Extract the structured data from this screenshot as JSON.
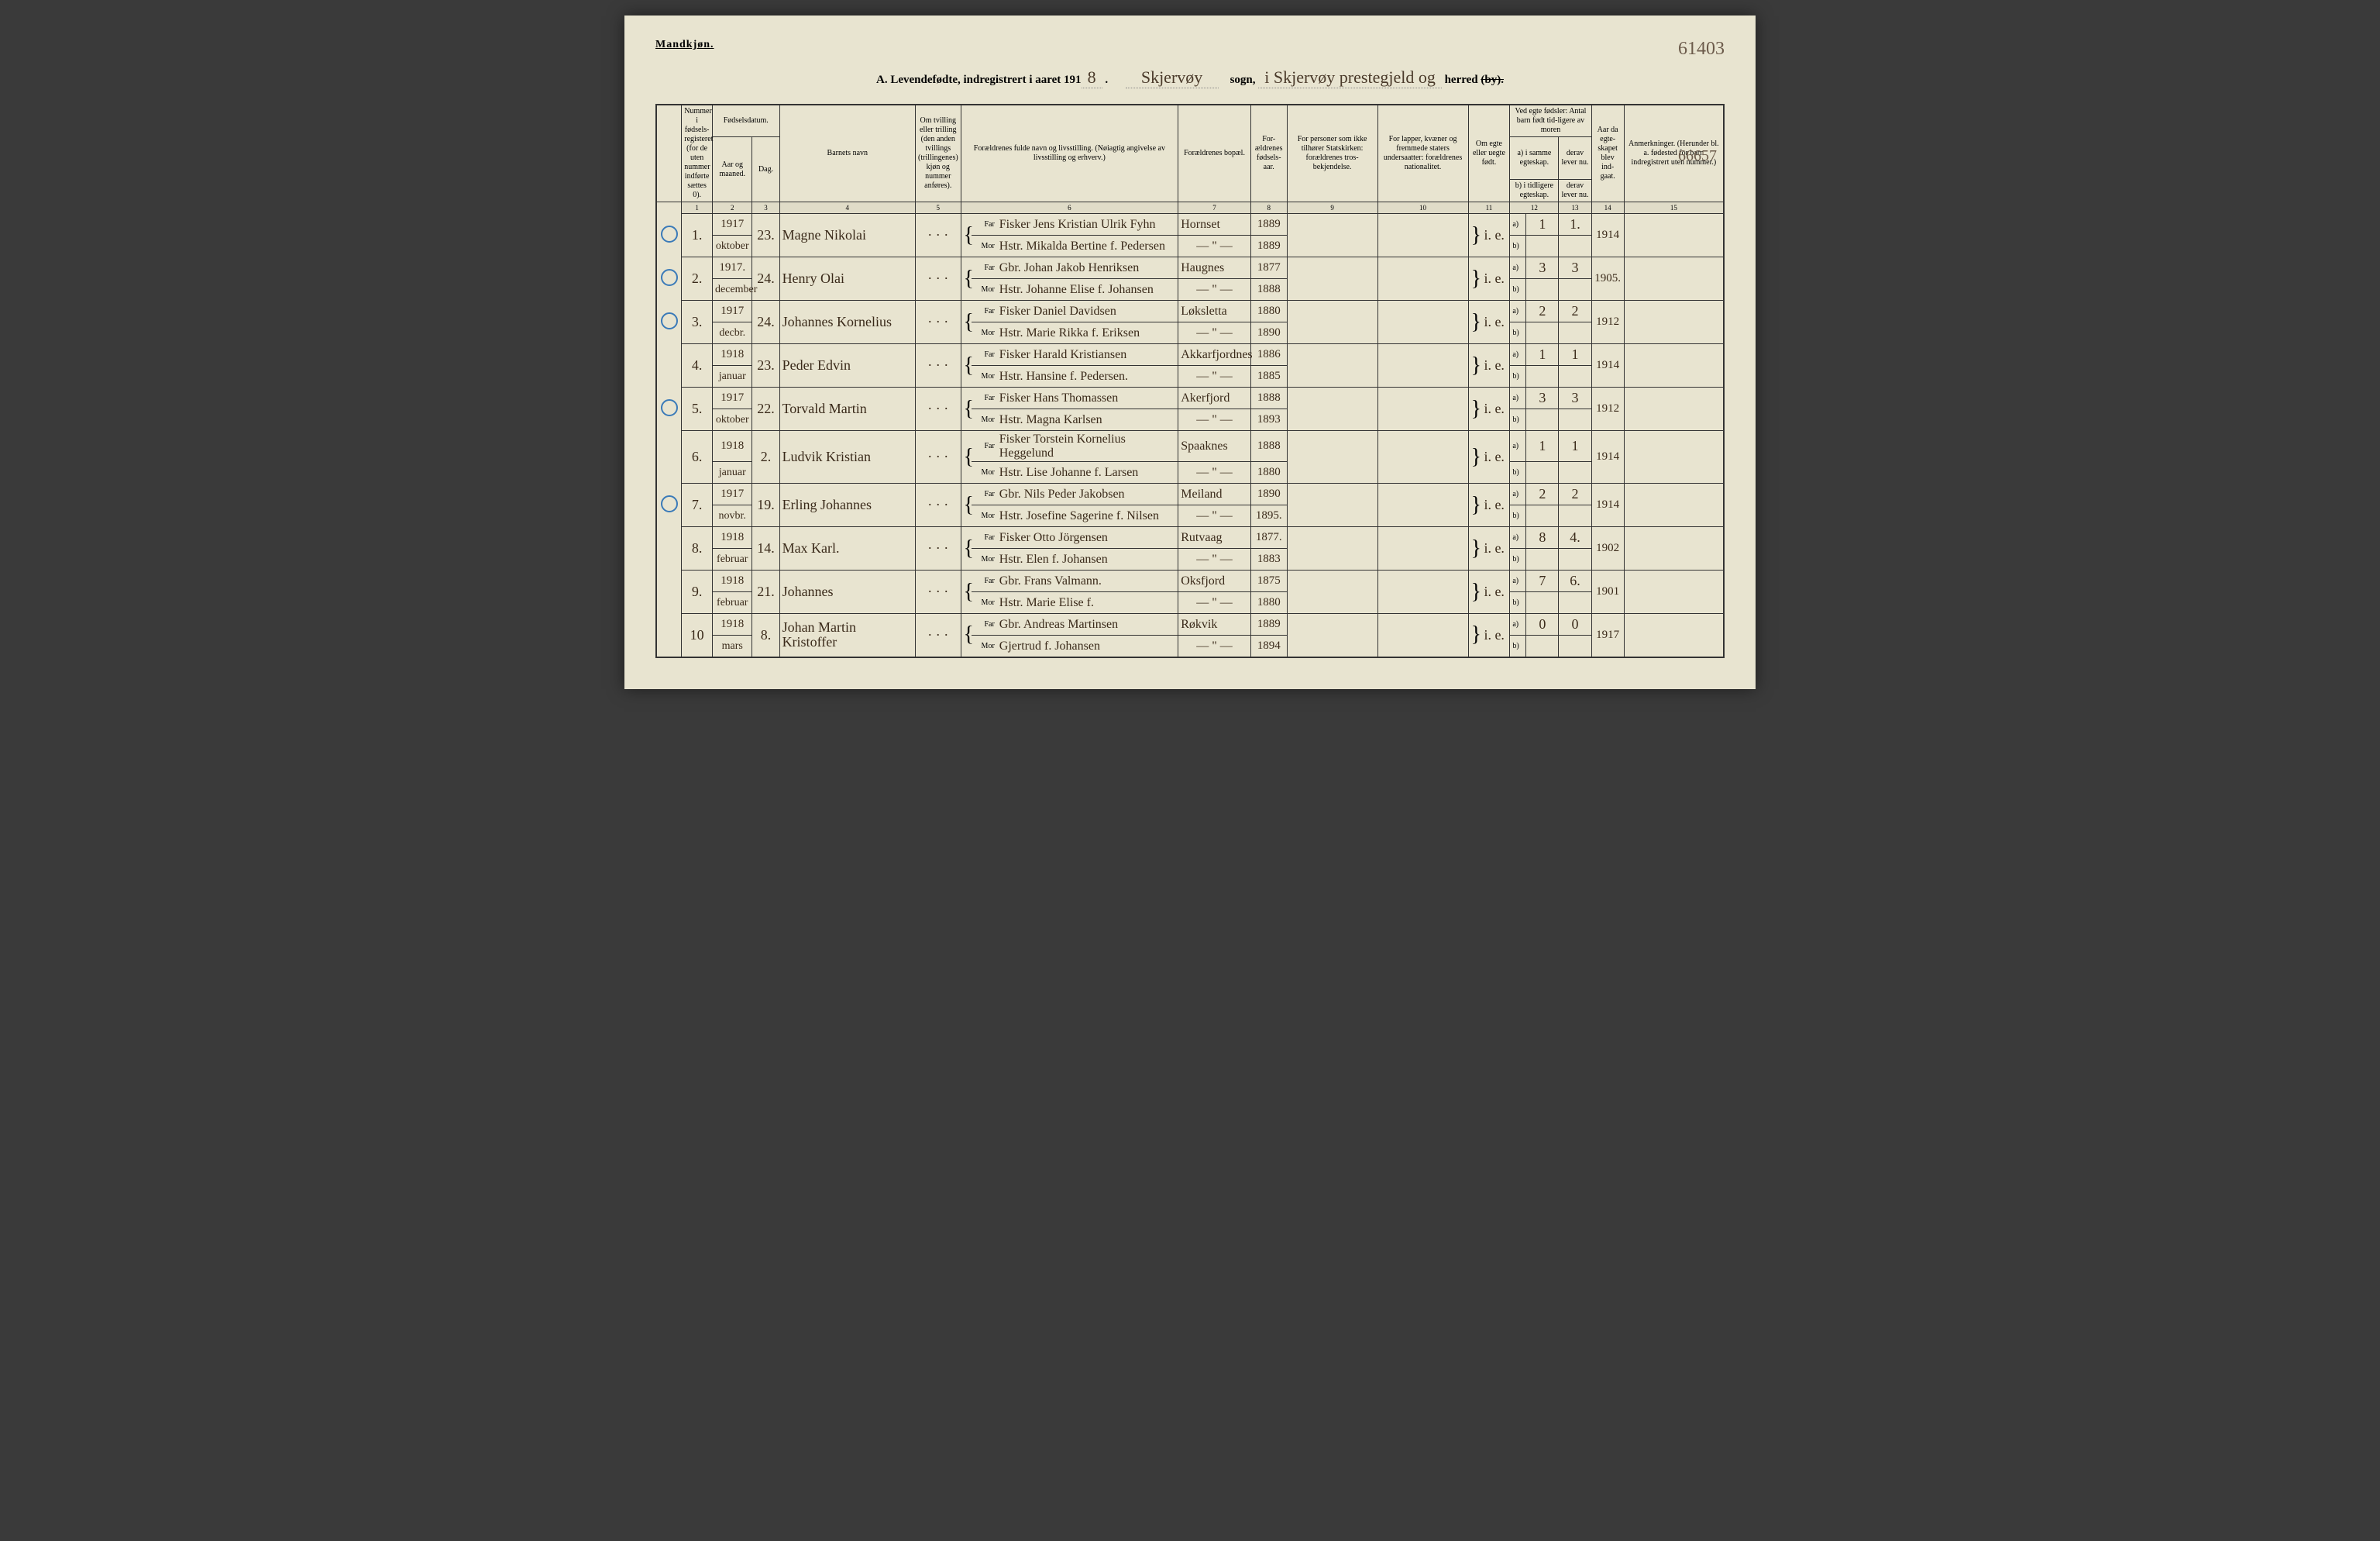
{
  "page": {
    "gender_label": "Mandkjøn.",
    "page_number_top": "61403",
    "margin_note_1": "66657",
    "title_printed_1": "A. Levendefødte, indregistrert i aaret 191",
    "title_year_suffix": "8",
    "title_sogn_script": "Skjervøy",
    "title_sogn_label": "sogn,",
    "title_prestegjeld_script": "i Skjervøy prestegjeld og",
    "title_herred_label": "herred",
    "title_by_strike": "(by)."
  },
  "columns": {
    "c1": "Nummer i fødsels-registeret (for de uten nummer indførte sættes 0).",
    "c2_top": "Fødselsdatum.",
    "c2a": "Aar og maaned.",
    "c2b": "Dag.",
    "c3": "",
    "c4": "Barnets navn",
    "c5": "Om tvilling eller trilling (den anden tvillings (trillingenes) kjøn og nummer anføres).",
    "c6": "Forældrenes fulde navn og livsstilling. (Nøiagtig angivelse av livsstilling og erhverv.)",
    "c7": "Forældrenes bopæl.",
    "c8": "For-ældrenes fødsels-aar.",
    "c9": "For personer som ikke tilhører Statskirken: forældrenes tros-bekjendelse.",
    "c10": "For lapper, kvæner og fremmede staters undersaatter: forældrenes nationalitet.",
    "c11": "Om egte eller uegte født.",
    "c12_top": "Ved egte fødsler: Antal barn født tid-ligere av moren",
    "c12a": "a) i samme egteskap.",
    "c12b": "b) i tidligere egteskap.",
    "c13a": "derav lever nu.",
    "c13b": "derav lever nu.",
    "c14": "Aar da egte-skapet blev ind-gaat.",
    "c15": "Anmerkninger. (Herunder bl. a. fødested for barn indregistrert uten nummer.)",
    "far": "Far",
    "mor": "Mor"
  },
  "colnums": [
    "1",
    "2",
    "3",
    "4",
    "5",
    "6",
    "7",
    "8",
    "9",
    "10",
    "11",
    "12",
    "13",
    "14",
    "15"
  ],
  "rows": [
    {
      "circle": true,
      "num": "1.",
      "year": "1917",
      "month": "oktober",
      "day": "23.",
      "name": "Magne Nikolai",
      "twin": "· · ·",
      "far": "Fisker Jens Kristian Ulrik Fyhn",
      "mor": "Hstr. Mikalda Bertine f. Pedersen",
      "bopael_far": "Hornset",
      "bopael_mor": "— \" —",
      "faar_far": "1889",
      "faar_mor": "1889",
      "egte": "i. e.",
      "a12": "1",
      "b12": "",
      "a13": "1.",
      "b13": "",
      "c14": "1914"
    },
    {
      "circle": true,
      "num": "2.",
      "year": "1917.",
      "month": "december",
      "day": "24.",
      "name": "Henry Olai",
      "twin": "· · ·",
      "far": "Gbr. Johan Jakob Henriksen",
      "mor": "Hstr. Johanne Elise f. Johansen",
      "bopael_far": "Haugnes",
      "bopael_mor": "— \" —",
      "faar_far": "1877",
      "faar_mor": "1888",
      "egte": "i. e.",
      "a12": "3",
      "b12": "",
      "a13": "3",
      "b13": "",
      "c14": "1905."
    },
    {
      "circle": true,
      "num": "3.",
      "year": "1917",
      "month": "decbr.",
      "day": "24.",
      "name": "Johannes Kornelius",
      "twin": "· · ·",
      "far": "Fisker Daniel Davidsen",
      "mor": "Hstr. Marie Rikka f. Eriksen",
      "bopael_far": "Løksletta",
      "bopael_mor": "— \" —",
      "faar_far": "1880",
      "faar_mor": "1890",
      "egte": "i. e.",
      "a12": "2",
      "b12": "",
      "a13": "2",
      "b13": "",
      "c14": "1912"
    },
    {
      "circle": false,
      "num": "4.",
      "year": "1918",
      "month": "januar",
      "day": "23.",
      "name": "Peder Edvin",
      "twin": "· · ·",
      "far": "Fisker Harald Kristiansen",
      "mor": "Hstr. Hansine f. Pedersen.",
      "bopael_far": "Akkarfjordnes",
      "bopael_mor": "— \" —",
      "faar_far": "1886",
      "faar_mor": "1885",
      "egte": "i. e.",
      "a12": "1",
      "b12": "",
      "a13": "1",
      "b13": "",
      "c14": "1914"
    },
    {
      "circle": true,
      "num": "5.",
      "year": "1917",
      "month": "oktober",
      "day": "22.",
      "name": "Torvald Martin",
      "twin": "· · ·",
      "far": "Fisker Hans Thomassen",
      "mor": "Hstr. Magna Karlsen",
      "bopael_far": "Akerfjord",
      "bopael_mor": "— \" —",
      "faar_far": "1888",
      "faar_mor": "1893",
      "egte": "i. e.",
      "a12": "3",
      "b12": "",
      "a13": "3",
      "b13": "",
      "c14": "1912"
    },
    {
      "circle": false,
      "num": "6.",
      "year": "1918",
      "month": "januar",
      "day": "2.",
      "name": "Ludvik Kristian",
      "twin": "· · ·",
      "far": "Fisker Torstein Kornelius Heggelund",
      "mor": "Hstr. Lise Johanne f. Larsen",
      "bopael_far": "Spaaknes",
      "bopael_mor": "— \" —",
      "faar_far": "1888",
      "faar_mor": "1880",
      "egte": "i. e.",
      "a12": "1",
      "b12": "",
      "a13": "1",
      "b13": "",
      "c14": "1914"
    },
    {
      "circle": true,
      "num": "7.",
      "year": "1917",
      "month": "novbr.",
      "day": "19.",
      "name": "Erling Johannes",
      "twin": "· · ·",
      "far": "Gbr. Nils Peder Jakobsen",
      "mor": "Hstr. Josefine Sagerine f. Nilsen",
      "bopael_far": "Meiland",
      "bopael_mor": "— \" —",
      "faar_far": "1890",
      "faar_mor": "1895.",
      "egte": "i. e.",
      "a12": "2",
      "b12": "",
      "a13": "2",
      "b13": "",
      "c14": "1914"
    },
    {
      "circle": false,
      "num": "8.",
      "year": "1918",
      "month": "februar",
      "day": "14.",
      "name": "Max Karl.",
      "twin": "· · ·",
      "far": "Fisker Otto Jörgensen",
      "mor": "Hstr. Elen f. Johansen",
      "bopael_far": "Rutvaag",
      "bopael_mor": "— \" —",
      "faar_far": "1877.",
      "faar_mor": "1883",
      "egte": "i. e.",
      "a12": "8",
      "b12": "",
      "a13": "4.",
      "b13": "",
      "c14": "1902"
    },
    {
      "circle": false,
      "num": "9.",
      "year": "1918",
      "month": "februar",
      "day": "21.",
      "name": "Johannes",
      "twin": "· · ·",
      "far": "Gbr. Frans Valmann.",
      "mor": "Hstr. Marie Elise f.",
      "bopael_far": "Oksfjord",
      "bopael_mor": "— \" —",
      "faar_far": "1875",
      "faar_mor": "1880",
      "egte": "i. e.",
      "a12": "7",
      "b12": "",
      "a13": "6.",
      "b13": "",
      "c14": "1901"
    },
    {
      "circle": false,
      "num": "10",
      "year": "1918",
      "month": "mars",
      "day": "8.",
      "name": "Johan Martin Kristoffer",
      "twin": "· · ·",
      "far": "Gbr. Andreas Martinsen",
      "mor": "Gjertrud f. Johansen",
      "bopael_far": "Røkvik",
      "bopael_mor": "— \" —",
      "faar_far": "1889",
      "faar_mor": "1894",
      "egte": "i. e.",
      "a12": "0",
      "b12": "",
      "a13": "0",
      "b13": "",
      "c14": "1917"
    }
  ],
  "styling": {
    "page_bg": "#e8e4d0",
    "ink": "#3a2a1a",
    "circle_color": "#3a7ab8",
    "border": "#333333",
    "script_font": "Brush Script MT, cursive",
    "print_font": "Georgia, Times New Roman, serif",
    "header_fontsize": 10,
    "body_fontsize": 11,
    "script_fontsize": 18
  }
}
